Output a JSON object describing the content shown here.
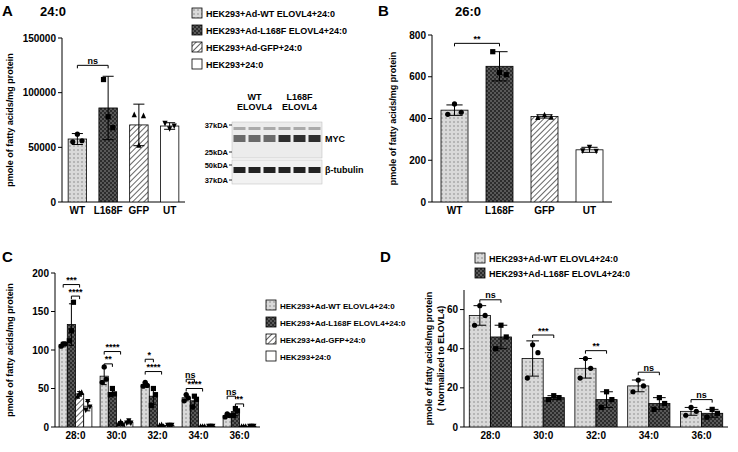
{
  "chart_data": [
    {
      "type": "bar",
      "panel_label": "A",
      "title": "24:0",
      "ylabel": [
        "pmole of fatty acids/mg protein"
      ],
      "categories": [
        "WT",
        "L168F",
        "GFP",
        "UT"
      ],
      "ylim": [
        0,
        150000
      ],
      "yticks": [
        0,
        50000,
        100000,
        150000
      ],
      "grid": false,
      "legend": "right",
      "series": [
        {
          "name": "HEK293+Ad-WT ELOVL4+24:0",
          "color": "#d9d9d9",
          "marker": "circle",
          "values": [
            57600,
            null,
            null,
            null
          ],
          "errors": [
            5000,
            null,
            null,
            null
          ],
          "points": [
            [
              55000,
              62000,
              56000
            ],
            null,
            null,
            null
          ]
        },
        {
          "name": "HEK293+Ad-L168F ELOVL4+24:0",
          "color": "#595959",
          "marker": "square",
          "values": [
            null,
            86000,
            null,
            null
          ],
          "errors": [
            null,
            29000,
            null,
            null
          ],
          "points": [
            null,
            [
              112000,
              78000,
              68000
            ],
            null,
            null
          ]
        },
        {
          "name": "HEK293+Ad-GFP+24:0",
          "color": "#ffffff",
          "marker": "triangle",
          "values": [
            null,
            null,
            70500,
            null
          ],
          "errors": [
            null,
            null,
            19000,
            null
          ],
          "points": [
            null,
            null,
            [
              80000,
              52000,
              79000
            ],
            null
          ]
        },
        {
          "name": "HEK293+24:0",
          "color": "#ffffff",
          "marker": "triangle-down",
          "values": [
            null,
            null,
            null,
            69500
          ],
          "errors": [
            null,
            null,
            null,
            3000
          ],
          "points": [
            null,
            null,
            null,
            [
              72000,
              67000,
              69500
            ]
          ]
        }
      ],
      "annotations": [
        {
          "text": "ns",
          "between": [
            [
              0,
              0
            ],
            [
              1,
              1
            ]
          ],
          "y": 125000
        }
      ],
      "blot": {
        "lanes": [
          "WT ELOVL4",
          "L168F ELOVL4"
        ],
        "left_labels": [
          "37kDA",
          "25kDA",
          "50kDA",
          "37kDA"
        ],
        "right_labels": [
          "MYC",
          "β-tubulin"
        ]
      }
    },
    {
      "type": "bar",
      "panel_label": "B",
      "title": "26:0",
      "ylabel": [
        "pmole of fatty acids/mg protein"
      ],
      "categories": [
        "WT",
        "L168F",
        "GFP",
        "UT"
      ],
      "ylim": [
        0,
        800
      ],
      "yticks": [
        0,
        200,
        400,
        600,
        800
      ],
      "grid": false,
      "series": [
        {
          "color": "#d9d9d9",
          "marker": "circle",
          "values": [
            440,
            null,
            null,
            null
          ],
          "errors": [
            25,
            null,
            null,
            null
          ],
          "points": [
            [
              420,
              470,
              430
            ],
            null,
            null,
            null
          ]
        },
        {
          "color": "#595959",
          "marker": "square",
          "values": [
            null,
            650,
            null,
            null
          ],
          "errors": [
            null,
            70,
            null,
            null
          ],
          "points": [
            null,
            [
              720,
              620,
              610
            ],
            null,
            null
          ]
        },
        {
          "color": "#ffffff",
          "marker": "triangle",
          "values": [
            null,
            null,
            410,
            null
          ],
          "errors": [
            null,
            null,
            8,
            null
          ],
          "points": [
            null,
            null,
            [
              405,
              418,
              407
            ],
            null
          ]
        },
        {
          "color": "#ffffff",
          "marker": "triangle-down",
          "values": [
            null,
            null,
            null,
            250
          ],
          "errors": [
            null,
            null,
            null,
            12
          ],
          "points": [
            null,
            null,
            null,
            [
              245,
              262,
              243
            ]
          ]
        }
      ],
      "annotations": [
        {
          "text": "**",
          "between": [
            [
              0,
              0
            ],
            [
              1,
              1
            ]
          ],
          "y": 760
        }
      ]
    },
    {
      "type": "bar",
      "panel_label": "C",
      "ylabel": [
        "pmole of fatty acids/mg protein"
      ],
      "categories": [
        "28:0",
        "30:0",
        "32:0",
        "34:0",
        "36:0"
      ],
      "ylim": [
        0,
        200
      ],
      "yticks": [
        0,
        50,
        100,
        150,
        200
      ],
      "grid": false,
      "legend": "right",
      "series": [
        {
          "name": "HEK293+Ad-WT ELOVL4+24:0",
          "color": "#d9d9d9",
          "marker": "circle",
          "values": [
            107,
            66,
            55,
            38,
            15
          ],
          "errors": [
            3,
            11,
            3,
            4,
            2
          ],
          "points": [
            [
              105,
              108,
              108
            ],
            [
              58,
              78,
              62
            ],
            [
              53,
              58,
              54
            ],
            [
              34,
              42,
              38
            ],
            [
              13,
              17,
              15
            ]
          ]
        },
        {
          "name": "HEK293+Ad-L168F ELOVL4+24:0",
          "color": "#595959",
          "marker": "square",
          "values": [
            133,
            45,
            40,
            34,
            20
          ],
          "errors": [
            27,
            4,
            11,
            8,
            5
          ],
          "points": [
            [
              112,
              125,
              162
            ],
            [
              42,
              50,
              43
            ],
            [
              28,
              50,
              42
            ],
            [
              26,
              40,
              36
            ],
            [
              15,
              24,
              21
            ]
          ]
        },
        {
          "name": "HEK293+Ad-GFP+24:0",
          "color": "#ffffff",
          "marker": "triangle",
          "values": [
            43,
            5,
            2,
            1,
            1
          ],
          "errors": [
            3,
            2,
            1,
            0.5,
            0.5
          ],
          "points": [
            [
              40,
              44,
              45
            ],
            [
              4,
              7,
              4
            ],
            [
              2,
              3,
              1
            ],
            [
              1,
              1,
              1
            ],
            [
              1,
              1,
              1
            ]
          ]
        },
        {
          "name": "HEK293+24:0",
          "color": "#ffffff",
          "marker": "triangle-down",
          "values": [
            27,
            6,
            2,
            1,
            1
          ],
          "errors": [
            6,
            2,
            1,
            0.5,
            0.5
          ],
          "points": [
            [
              22,
              33,
              26
            ],
            [
              5,
              8,
              5
            ],
            [
              2,
              2,
              2
            ],
            [
              1,
              1,
              1
            ],
            [
              1,
              1,
              1
            ]
          ]
        }
      ],
      "annotations": [
        {
          "text": "***",
          "between": [
            [
              0,
              0
            ],
            [
              0,
              2
            ]
          ],
          "y": 185
        },
        {
          "text": "****",
          "between": [
            [
              0,
              1
            ],
            [
              0,
              2
            ]
          ],
          "y": 170
        },
        {
          "text": "**",
          "between": [
            [
              1,
              0
            ],
            [
              1,
              1
            ]
          ],
          "y": 82
        },
        {
          "text": "****",
          "between": [
            [
              1,
              0
            ],
            [
              1,
              2
            ]
          ],
          "y": 98
        },
        {
          "text": "*",
          "between": [
            [
              2,
              0
            ],
            [
              2,
              1
            ]
          ],
          "y": 88
        },
        {
          "text": "****",
          "between": [
            [
              2,
              0
            ],
            [
              2,
              2
            ]
          ],
          "y": 72
        },
        {
          "text": "ns",
          "between": [
            [
              3,
              0
            ],
            [
              3,
              1
            ]
          ],
          "y": 62
        },
        {
          "text": "****",
          "between": [
            [
              3,
              0
            ],
            [
              3,
              2
            ]
          ],
          "y": 50
        },
        {
          "text": "ns",
          "between": [
            [
              4,
              0
            ],
            [
              4,
              1
            ]
          ],
          "y": 40
        },
        {
          "text": "**",
          "between": [
            [
              4,
              1
            ],
            [
              4,
              2
            ]
          ],
          "y": 30
        }
      ]
    },
    {
      "type": "bar",
      "panel_label": "D",
      "ylabel": [
        "pmole of fatty acids/mg protein",
        "( Normalized to ELOVL4)"
      ],
      "categories": [
        "28:0",
        "30:0",
        "32:0",
        "34:0",
        "36:0"
      ],
      "ylim": [
        0,
        70
      ],
      "yticks": [
        0,
        20,
        40,
        60
      ],
      "grid": false,
      "legend": "top",
      "series": [
        {
          "name": "HEK293+Ad-WT ELOVL4+24:0",
          "color": "#d9d9d9",
          "marker": "circle",
          "values": [
            57,
            35,
            30,
            21,
            8
          ],
          "errors": [
            5,
            9,
            5,
            3,
            2
          ],
          "points": [
            [
              52,
              62,
              57
            ],
            [
              25,
              42,
              38
            ],
            [
              25,
              35,
              30
            ],
            [
              18,
              24,
              21
            ],
            [
              6,
              10,
              8
            ]
          ]
        },
        {
          "name": "HEK293+Ad-L168F ELOVL4+24:0",
          "color": "#595959",
          "marker": "square",
          "values": [
            46,
            15,
            14,
            12,
            7
          ],
          "errors": [
            6,
            1,
            4,
            3,
            2
          ],
          "points": [
            [
              40,
              52,
              46
            ],
            [
              14,
              16,
              15
            ],
            [
              10,
              18,
              14
            ],
            [
              9,
              15,
              12
            ],
            [
              5,
              9,
              7
            ]
          ]
        }
      ],
      "annotations": [
        {
          "text": "ns",
          "between": [
            [
              0,
              0
            ],
            [
              0,
              1
            ]
          ],
          "y": 65
        },
        {
          "text": "***",
          "between": [
            [
              1,
              0
            ],
            [
              1,
              1
            ]
          ],
          "y": 47
        },
        {
          "text": "**",
          "between": [
            [
              2,
              0
            ],
            [
              2,
              1
            ]
          ],
          "y": 39
        },
        {
          "text": "ns",
          "between": [
            [
              3,
              0
            ],
            [
              3,
              1
            ]
          ],
          "y": 28
        },
        {
          "text": "ns",
          "between": [
            [
              4,
              0
            ],
            [
              4,
              1
            ]
          ],
          "y": 14
        }
      ]
    }
  ]
}
